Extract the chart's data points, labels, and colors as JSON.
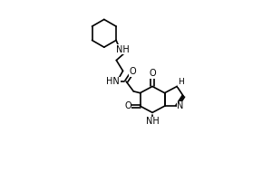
{
  "bg_color": "#ffffff",
  "line_color": "#000000",
  "line_width": 1.2,
  "font_size": 7.0,
  "figsize": [
    3.0,
    2.0
  ],
  "dpi": 100,
  "xlim": [
    0.0,
    9.5
  ],
  "ylim": [
    0.5,
    11.5
  ]
}
